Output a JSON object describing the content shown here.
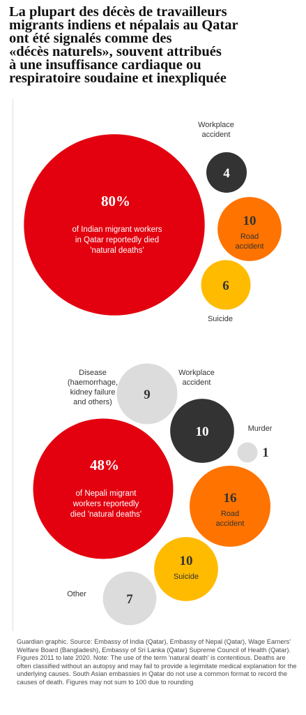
{
  "title": "La plupart des décès de travailleurs\nmigrants indiens et népalais au Qatar\nont été signalés comme des\n«décès naturels», souvent attribués\nà une insuffisance cardiaque ou\nrespiratoire soudaine et inexpliquée",
  "source": "Guardian graphic. Source: Embassy of India (Qatar), Embassy of Nepal (Qatar), Wage Earners' Welfare Board (Bangladesh), Embassy of Sri Lanka (Qatar) Supreme Council of Health (Qatar). Figures 2011 to late 2020. Note: The use of the term 'natural death' is contentious. Deaths are often classified without an autopsy and may fail to provide a legimitate medical explanation for the underlying causes. South Asian embassies in Qatar do not use a common format to record the causes of death. Figures may not sum to 100 due to rounding",
  "chart_data": [
    {
      "type": "bubble",
      "group": "India",
      "bubbles": [
        {
          "key": "natural",
          "value": 80,
          "value_label": "80%",
          "label": "of Indian migrant workers\nin Qatar reportedly died\n'natural deaths'",
          "color": "#e3000f"
        },
        {
          "key": "workplace",
          "value": 4,
          "value_label": "4",
          "label": "Workplace\naccident",
          "color": "#333333"
        },
        {
          "key": "road",
          "value": 10,
          "value_label": "10",
          "label": "Road\naccident",
          "color": "#ff7300"
        },
        {
          "key": "suicide",
          "value": 6,
          "value_label": "6",
          "label": "Suicide",
          "color": "#ffbb00"
        }
      ]
    },
    {
      "type": "bubble",
      "group": "Nepal",
      "bubbles": [
        {
          "key": "natural",
          "value": 48,
          "value_label": "48%",
          "label": "of Nepali migrant\nworkers reportedly\ndied 'natural deaths'",
          "color": "#e3000f"
        },
        {
          "key": "disease",
          "value": 9,
          "value_label": "9",
          "label": "Disease\n(haemorrhage,\nkidney failure\nand others)",
          "color": "#dcdcdc"
        },
        {
          "key": "workplace",
          "value": 10,
          "value_label": "10",
          "label": "Workplace\naccident",
          "color": "#333333"
        },
        {
          "key": "murder",
          "value": 1,
          "value_label": "1",
          "label": "Murder",
          "color": "#dcdcdc"
        },
        {
          "key": "road",
          "value": 16,
          "value_label": "16",
          "label": "Road\naccident",
          "color": "#ff7300"
        },
        {
          "key": "suicide",
          "value": 10,
          "value_label": "10",
          "label": "Suicide",
          "color": "#ffbb00"
        },
        {
          "key": "other",
          "value": 7,
          "value_label": "7",
          "label": "Other",
          "color": "#dcdcdc"
        }
      ]
    }
  ]
}
